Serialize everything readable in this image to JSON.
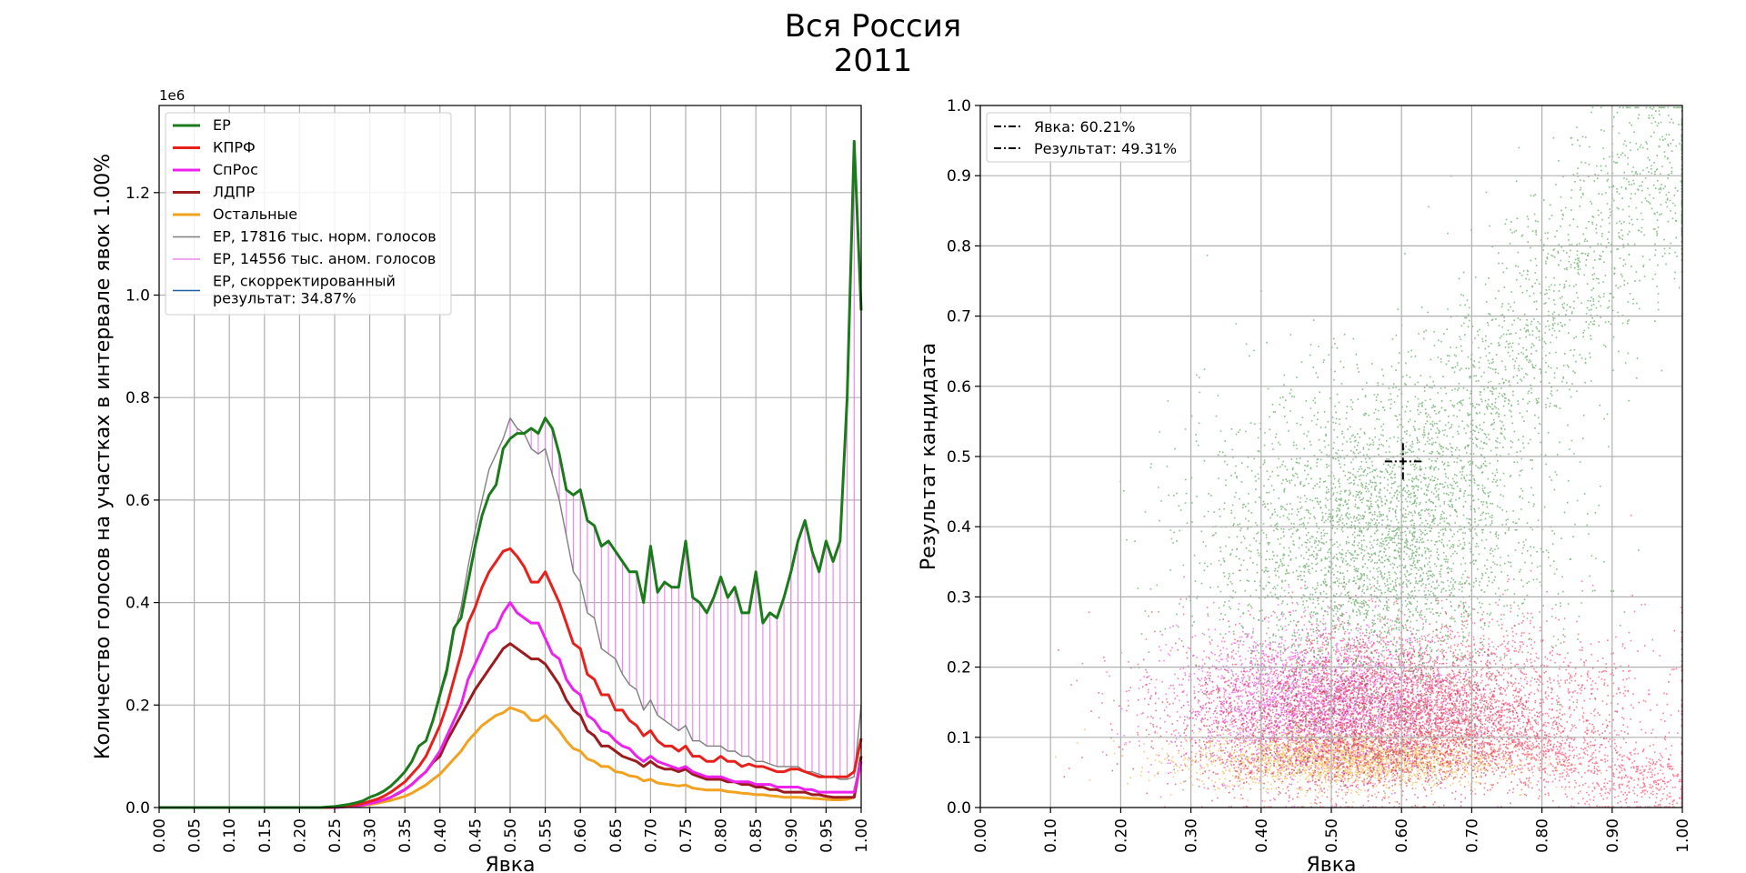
{
  "figure": {
    "title_line1": "Вся Россия",
    "title_line2": "2011"
  },
  "chart_data": [
    {
      "type": "line",
      "xlabel": "Явка",
      "ylabel": "Количество голосов на участках в интервале явок 1.00%",
      "offset_label": "1e6",
      "xlim": [
        0,
        1
      ],
      "ylim": [
        0,
        1.37
      ],
      "x_ticks": [
        "0.00",
        "0.05",
        "0.10",
        "0.15",
        "0.20",
        "0.25",
        "0.30",
        "0.35",
        "0.40",
        "0.45",
        "0.50",
        "0.55",
        "0.60",
        "0.65",
        "0.70",
        "0.75",
        "0.80",
        "0.85",
        "0.90",
        "0.95",
        "1.00"
      ],
      "y_ticks": [
        "0.0",
        "0.2",
        "0.4",
        "0.6",
        "0.8",
        "1.0",
        "1.2"
      ],
      "grid": true,
      "legend_position": "upper-left",
      "x": [
        0,
        0.01,
        0.02,
        0.03,
        0.04,
        0.05,
        0.06,
        0.07,
        0.08,
        0.09,
        0.1,
        0.11,
        0.12,
        0.13,
        0.14,
        0.15,
        0.16,
        0.17,
        0.18,
        0.19,
        0.2,
        0.21,
        0.22,
        0.23,
        0.24,
        0.25,
        0.26,
        0.27,
        0.28,
        0.29,
        0.3,
        0.31,
        0.32,
        0.33,
        0.34,
        0.35,
        0.36,
        0.37,
        0.38,
        0.39,
        0.4,
        0.41,
        0.42,
        0.43,
        0.44,
        0.45,
        0.46,
        0.47,
        0.48,
        0.49,
        0.5,
        0.51,
        0.52,
        0.53,
        0.54,
        0.55,
        0.56,
        0.57,
        0.58,
        0.59,
        0.6,
        0.61,
        0.62,
        0.63,
        0.64,
        0.65,
        0.66,
        0.67,
        0.68,
        0.69,
        0.7,
        0.71,
        0.72,
        0.73,
        0.74,
        0.75,
        0.76,
        0.77,
        0.78,
        0.79,
        0.8,
        0.81,
        0.82,
        0.83,
        0.84,
        0.85,
        0.86,
        0.87,
        0.88,
        0.89,
        0.9,
        0.91,
        0.92,
        0.93,
        0.94,
        0.95,
        0.96,
        0.97,
        0.98,
        0.99,
        1.0
      ],
      "series": [
        {
          "name": "ЕР",
          "color": "#1b7a1b",
          "width": 3,
          "values": [
            0,
            0,
            0,
            0,
            0,
            0,
            0,
            0,
            0,
            0,
            0,
            0,
            0,
            0,
            0,
            0,
            0,
            0,
            0,
            0,
            0,
            0,
            0,
            0,
            0.001,
            0.002,
            0.004,
            0.006,
            0.009,
            0.013,
            0.02,
            0.025,
            0.032,
            0.042,
            0.055,
            0.07,
            0.09,
            0.12,
            0.13,
            0.17,
            0.22,
            0.27,
            0.35,
            0.37,
            0.44,
            0.51,
            0.57,
            0.61,
            0.63,
            0.7,
            0.72,
            0.73,
            0.73,
            0.74,
            0.73,
            0.76,
            0.74,
            0.69,
            0.62,
            0.61,
            0.62,
            0.56,
            0.55,
            0.51,
            0.52,
            0.5,
            0.48,
            0.46,
            0.46,
            0.4,
            0.51,
            0.42,
            0.44,
            0.43,
            0.43,
            0.52,
            0.41,
            0.4,
            0.38,
            0.41,
            0.45,
            0.41,
            0.43,
            0.38,
            0.38,
            0.46,
            0.36,
            0.38,
            0.37,
            0.41,
            0.46,
            0.52,
            0.56,
            0.5,
            0.46,
            0.52,
            0.48,
            0.52,
            0.8,
            1.3,
            0.97
          ]
        },
        {
          "name": "КПРФ",
          "color": "#e8201c",
          "width": 3,
          "values": [
            0,
            0,
            0,
            0,
            0,
            0,
            0,
            0,
            0,
            0,
            0,
            0,
            0,
            0,
            0,
            0,
            0,
            0,
            0,
            0,
            0,
            0,
            0,
            0,
            0,
            0.001,
            0.002,
            0.003,
            0.005,
            0.008,
            0.012,
            0.016,
            0.022,
            0.03,
            0.04,
            0.05,
            0.065,
            0.08,
            0.1,
            0.13,
            0.16,
            0.2,
            0.25,
            0.3,
            0.36,
            0.39,
            0.43,
            0.46,
            0.48,
            0.5,
            0.505,
            0.49,
            0.47,
            0.44,
            0.44,
            0.46,
            0.43,
            0.4,
            0.36,
            0.32,
            0.31,
            0.26,
            0.25,
            0.22,
            0.22,
            0.19,
            0.19,
            0.17,
            0.16,
            0.14,
            0.15,
            0.13,
            0.12,
            0.12,
            0.11,
            0.12,
            0.1,
            0.1,
            0.09,
            0.09,
            0.1,
            0.09,
            0.09,
            0.08,
            0.085,
            0.08,
            0.08,
            0.075,
            0.07,
            0.07,
            0.075,
            0.075,
            0.07,
            0.065,
            0.06,
            0.06,
            0.06,
            0.06,
            0.06,
            0.07,
            0.135
          ]
        },
        {
          "name": "СпРос",
          "color": "#ee22ee",
          "width": 3,
          "values": [
            0,
            0,
            0,
            0,
            0,
            0,
            0,
            0,
            0,
            0,
            0,
            0,
            0,
            0,
            0,
            0,
            0,
            0,
            0,
            0,
            0,
            0,
            0,
            0,
            0,
            0,
            0.001,
            0.002,
            0.003,
            0.005,
            0.008,
            0.011,
            0.015,
            0.02,
            0.028,
            0.035,
            0.045,
            0.058,
            0.07,
            0.09,
            0.11,
            0.14,
            0.17,
            0.2,
            0.25,
            0.28,
            0.31,
            0.34,
            0.35,
            0.38,
            0.4,
            0.38,
            0.37,
            0.36,
            0.36,
            0.33,
            0.3,
            0.29,
            0.25,
            0.23,
            0.22,
            0.18,
            0.17,
            0.15,
            0.145,
            0.13,
            0.12,
            0.115,
            0.1,
            0.09,
            0.1,
            0.09,
            0.085,
            0.08,
            0.075,
            0.08,
            0.07,
            0.065,
            0.06,
            0.06,
            0.06,
            0.055,
            0.05,
            0.05,
            0.05,
            0.045,
            0.045,
            0.045,
            0.04,
            0.04,
            0.04,
            0.04,
            0.035,
            0.035,
            0.03,
            0.03,
            0.03,
            0.03,
            0.03,
            0.03,
            0.09
          ]
        },
        {
          "name": "ЛДПР",
          "color": "#9b1b1e",
          "width": 3,
          "values": [
            0,
            0,
            0,
            0,
            0,
            0,
            0,
            0,
            0,
            0,
            0,
            0,
            0,
            0,
            0,
            0,
            0,
            0,
            0,
            0,
            0,
            0,
            0,
            0,
            0,
            0,
            0.001,
            0.002,
            0.003,
            0.005,
            0.008,
            0.011,
            0.015,
            0.02,
            0.027,
            0.035,
            0.045,
            0.058,
            0.07,
            0.088,
            0.1,
            0.13,
            0.155,
            0.18,
            0.205,
            0.23,
            0.25,
            0.27,
            0.29,
            0.31,
            0.32,
            0.31,
            0.3,
            0.29,
            0.29,
            0.28,
            0.26,
            0.24,
            0.21,
            0.19,
            0.18,
            0.15,
            0.14,
            0.12,
            0.12,
            0.11,
            0.1,
            0.095,
            0.09,
            0.08,
            0.09,
            0.08,
            0.075,
            0.075,
            0.07,
            0.075,
            0.065,
            0.06,
            0.055,
            0.055,
            0.055,
            0.05,
            0.05,
            0.045,
            0.045,
            0.04,
            0.04,
            0.035,
            0.035,
            0.03,
            0.03,
            0.03,
            0.03,
            0.025,
            0.025,
            0.022,
            0.02,
            0.02,
            0.02,
            0.02,
            0.1
          ]
        },
        {
          "name": "Остальные",
          "color": "#f2a21e",
          "width": 3,
          "values": [
            0,
            0,
            0,
            0,
            0,
            0,
            0,
            0,
            0,
            0,
            0,
            0,
            0,
            0,
            0,
            0,
            0,
            0,
            0,
            0,
            0,
            0,
            0,
            0,
            0,
            0,
            0.001,
            0.002,
            0.003,
            0.004,
            0.006,
            0.008,
            0.011,
            0.014,
            0.018,
            0.022,
            0.028,
            0.036,
            0.044,
            0.055,
            0.065,
            0.08,
            0.095,
            0.11,
            0.13,
            0.145,
            0.16,
            0.17,
            0.18,
            0.185,
            0.195,
            0.19,
            0.185,
            0.17,
            0.17,
            0.18,
            0.165,
            0.15,
            0.13,
            0.115,
            0.11,
            0.095,
            0.09,
            0.08,
            0.08,
            0.07,
            0.068,
            0.062,
            0.06,
            0.052,
            0.055,
            0.048,
            0.046,
            0.044,
            0.042,
            0.044,
            0.038,
            0.036,
            0.034,
            0.034,
            0.034,
            0.031,
            0.03,
            0.028,
            0.027,
            0.025,
            0.025,
            0.023,
            0.022,
            0.02,
            0.02,
            0.02,
            0.019,
            0.018,
            0.017,
            0.016,
            0.015,
            0.015,
            0.016,
            0.02,
            0.09
          ]
        },
        {
          "name": "ЕР, 17816 тыс. норм. голосов",
          "color": "#7f7f7f",
          "width": 1.4,
          "values": [
            0,
            0,
            0,
            0,
            0,
            0,
            0,
            0,
            0,
            0,
            0,
            0,
            0,
            0,
            0,
            0,
            0,
            0,
            0,
            0,
            0,
            0,
            0,
            0,
            0.001,
            0.002,
            0.004,
            0.006,
            0.009,
            0.013,
            0.02,
            0.025,
            0.032,
            0.042,
            0.055,
            0.07,
            0.09,
            0.12,
            0.13,
            0.17,
            0.22,
            0.26,
            0.34,
            0.39,
            0.47,
            0.54,
            0.6,
            0.66,
            0.69,
            0.72,
            0.76,
            0.74,
            0.73,
            0.7,
            0.69,
            0.7,
            0.65,
            0.6,
            0.53,
            0.46,
            0.44,
            0.38,
            0.37,
            0.31,
            0.3,
            0.29,
            0.26,
            0.24,
            0.23,
            0.19,
            0.21,
            0.18,
            0.17,
            0.16,
            0.15,
            0.16,
            0.13,
            0.13,
            0.12,
            0.12,
            0.12,
            0.11,
            0.11,
            0.1,
            0.1,
            0.09,
            0.09,
            0.085,
            0.08,
            0.08,
            0.08,
            0.08,
            0.07,
            0.07,
            0.065,
            0.06,
            0.06,
            0.055,
            0.055,
            0.06,
            0.2
          ]
        }
      ],
      "legend_entries": [
        {
          "label": "ЕР",
          "color": "#1b7a1b"
        },
        {
          "label": "КПРФ",
          "color": "#e8201c"
        },
        {
          "label": "СпРос",
          "color": "#ee22ee"
        },
        {
          "label": "ЛДПР",
          "color": "#9b1b1e"
        },
        {
          "label": "Остальные",
          "color": "#f2a21e"
        },
        {
          "label": "ЕР, 17816 тыс. норм. голосов",
          "color": "#7f7f7f"
        },
        {
          "label": "ЕР, 14556 тыс. аном. голосов",
          "color": "#ee88ee"
        },
        {
          "label": "ЕР, скорректированный",
          "label2": "результат: 34.87%",
          "color": "#1f5fa8"
        }
      ],
      "anomaly_color": "#ee88ee",
      "anomaly_range": [
        0.5,
        0.99
      ]
    },
    {
      "type": "scatter",
      "xlabel": "Явка",
      "ylabel": "Результат кандидата",
      "xlim": [
        0,
        1
      ],
      "ylim": [
        0,
        1
      ],
      "x_ticks": [
        "0.00",
        "0.10",
        "0.20",
        "0.30",
        "0.40",
        "0.50",
        "0.60",
        "0.70",
        "0.80",
        "0.90",
        "1.00"
      ],
      "y_ticks": [
        "0.0",
        "0.1",
        "0.2",
        "0.3",
        "0.4",
        "0.5",
        "0.6",
        "0.7",
        "0.8",
        "0.9",
        "1.0"
      ],
      "grid": true,
      "legend_position": "upper-left",
      "legend_entries": [
        {
          "label": "Явка: 60.21%"
        },
        {
          "label": "Результат: 49.31%"
        }
      ],
      "marker": {
        "x": 0.6021,
        "y": 0.4931
      },
      "clusters": [
        {
          "name": "Остальные",
          "color": "#f2a21e",
          "center": [
            0.52,
            0.07
          ],
          "spread": [
            0.11,
            0.02
          ]
        },
        {
          "name": "СпРос",
          "color": "#ee22ee",
          "center": [
            0.48,
            0.15
          ],
          "spread": [
            0.1,
            0.05
          ]
        },
        {
          "name": "ЛДПР",
          "color": "#c0103a",
          "center": [
            0.55,
            0.12
          ],
          "spread": [
            0.13,
            0.05
          ]
        },
        {
          "name": "КПРФ",
          "color": "#ff1744",
          "center": [
            0.62,
            0.16
          ],
          "spread": [
            0.16,
            0.06
          ]
        },
        {
          "name": "ЕР",
          "color": "#2a8a2a",
          "center": [
            0.56,
            0.36
          ],
          "spread": [
            0.12,
            0.12
          ]
        }
      ]
    }
  ]
}
